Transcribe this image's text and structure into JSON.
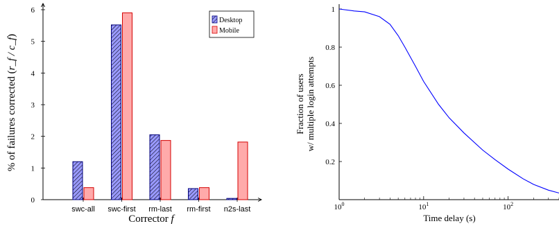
{
  "chart_data": [
    {
      "type": "bar",
      "categories": [
        "swc-all",
        "swc-first",
        "rm-last",
        "rm-first",
        "n2s-last"
      ],
      "series": [
        {
          "name": "Desktop",
          "values": [
            1.2,
            5.52,
            2.05,
            0.35,
            0.04
          ],
          "color": "#9999ff",
          "pattern": "hatch"
        },
        {
          "name": "Mobile",
          "values": [
            0.38,
            5.9,
            1.87,
            0.38,
            1.82
          ],
          "color": "#ffaaaa",
          "pattern": "solid"
        }
      ],
      "xlabel": "Corrector",
      "xlabel_var": "f",
      "ylabel": "% of failures corrected (",
      "ylabel_math": "r_f / c_f",
      "ylabel_end": ")",
      "ylim": [
        0,
        6
      ],
      "yticks": [
        "0",
        "1",
        "2",
        "3",
        "4",
        "5",
        "6"
      ],
      "legend_position": "top-right"
    },
    {
      "type": "line",
      "x": [
        1,
        1.5,
        2,
        3,
        4,
        5,
        6,
        8,
        10,
        15,
        20,
        30,
        50,
        70,
        100,
        150,
        200,
        300,
        400
      ],
      "series": [
        {
          "values": [
            1.0,
            0.99,
            0.985,
            0.96,
            0.92,
            0.86,
            0.8,
            0.7,
            0.62,
            0.5,
            0.43,
            0.35,
            0.26,
            0.21,
            0.16,
            0.11,
            0.08,
            0.05,
            0.035
          ],
          "color": "#0000ff"
        }
      ],
      "xlabel": "Time delay (s)",
      "ylabel_line1": "Fraction of users",
      "ylabel_line2": "w/ multiple login attempts",
      "xscale": "log",
      "xlim": [
        1,
        400
      ],
      "ylim": [
        0,
        1
      ],
      "xticks": [
        {
          "base": "10",
          "exp": "0",
          "value": 1
        },
        {
          "base": "10",
          "exp": "1",
          "value": 10
        },
        {
          "base": "10",
          "exp": "2",
          "value": 100
        }
      ],
      "yticks": [
        "0.2",
        "0.4",
        "0.6",
        "0.8",
        "1"
      ]
    }
  ]
}
